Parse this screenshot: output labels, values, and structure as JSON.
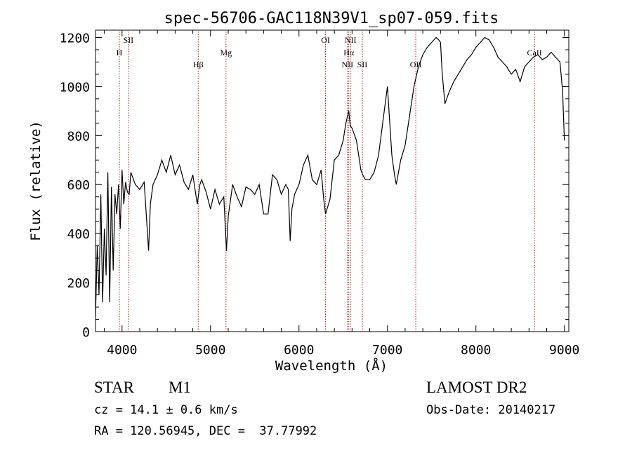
{
  "chart_data": {
    "type": "line",
    "title": "spec-56706-GAC118N39V1_sp07-059.fits",
    "xlabel": "Wavelength (Å)",
    "ylabel": "Flux (relative)",
    "xlim": [
      3700,
      9050
    ],
    "ylim": [
      0,
      1230
    ],
    "xticks": [
      4000,
      5000,
      6000,
      7000,
      8000,
      9000
    ],
    "yticks": [
      0,
      200,
      400,
      600,
      800,
      1000,
      1200
    ],
    "grid": false,
    "line_color": "#000000",
    "marker_color": "#b22222",
    "lines": [
      {
        "label": "H",
        "x": 3970,
        "row": 2
      },
      {
        "label": "SII",
        "x": 4072,
        "row": 1
      },
      {
        "label": "Hβ",
        "x": 4861,
        "row": 3
      },
      {
        "label": "Mg",
        "x": 5175,
        "row": 2
      },
      {
        "label": "OI",
        "x": 6300,
        "row": 1
      },
      {
        "label": "NII",
        "x": 6548,
        "row": 3
      },
      {
        "label": "Hα",
        "x": 6563,
        "row": 2
      },
      {
        "label": "NII",
        "x": 6583,
        "row": 1
      },
      {
        "label": "SII",
        "x": 6716,
        "row": 3
      },
      {
        "label": "OII",
        "x": 7320,
        "row": 3
      },
      {
        "label": "CaII",
        "x": 8662,
        "row": 2
      }
    ],
    "series": [
      {
        "x": [
          3700,
          3720,
          3740,
          3760,
          3780,
          3800,
          3820,
          3840,
          3860,
          3880,
          3900,
          3920,
          3940,
          3960,
          3980,
          4000,
          4020,
          4040,
          4060,
          4080,
          4100,
          4150,
          4200,
          4250,
          4300,
          4320,
          4350,
          4400,
          4450,
          4500,
          4550,
          4600,
          4650,
          4700,
          4750,
          4800,
          4850,
          4880,
          4900,
          4950,
          5000,
          5050,
          5100,
          5150,
          5180,
          5200,
          5250,
          5300,
          5350,
          5400,
          5450,
          5500,
          5550,
          5600,
          5650,
          5700,
          5750,
          5800,
          5850,
          5880,
          5900,
          5920,
          5950,
          6000,
          6050,
          6100,
          6150,
          6200,
          6250,
          6280,
          6300,
          6350,
          6400,
          6450,
          6500,
          6530,
          6550,
          6563,
          6580,
          6600,
          6650,
          6700,
          6720,
          6750,
          6800,
          6850,
          6900,
          6950,
          7000,
          7050,
          7080,
          7100,
          7150,
          7200,
          7250,
          7300,
          7350,
          7400,
          7450,
          7500,
          7550,
          7580,
          7600,
          7620,
          7650,
          7700,
          7750,
          7800,
          7850,
          7900,
          7950,
          8000,
          8050,
          8100,
          8150,
          8200,
          8250,
          8300,
          8350,
          8400,
          8450,
          8500,
          8550,
          8600,
          8650,
          8700,
          8750,
          8800,
          8850,
          8900,
          8950,
          8980,
          9000
        ],
        "y": [
          60,
          350,
          150,
          560,
          120,
          420,
          230,
          650,
          120,
          590,
          250,
          560,
          480,
          600,
          420,
          660,
          520,
          610,
          570,
          560,
          650,
          600,
          580,
          610,
          330,
          520,
          600,
          640,
          700,
          650,
          720,
          640,
          680,
          610,
          580,
          640,
          520,
          600,
          620,
          570,
          500,
          580,
          520,
          550,
          330,
          470,
          600,
          550,
          510,
          590,
          580,
          560,
          600,
          480,
          480,
          640,
          620,
          560,
          600,
          580,
          370,
          500,
          560,
          600,
          680,
          720,
          620,
          600,
          660,
          540,
          480,
          540,
          700,
          720,
          780,
          850,
          880,
          900,
          840,
          830,
          780,
          660,
          640,
          620,
          620,
          650,
          720,
          860,
          1000,
          720,
          640,
          600,
          700,
          760,
          880,
          1000,
          1080,
          1130,
          1160,
          1180,
          1200,
          1190,
          1180,
          1050,
          930,
          980,
          1020,
          1050,
          1080,
          1110,
          1130,
          1160,
          1180,
          1200,
          1190,
          1160,
          1120,
          1100,
          1080,
          1050,
          1070,
          1020,
          1080,
          1100,
          1120,
          1130,
          1110,
          1120,
          1140,
          1120,
          1100,
          980,
          780
        ]
      }
    ]
  },
  "footer": {
    "object_class": "STAR",
    "subclass": "M1",
    "survey": "LAMOST DR2",
    "redshift": "cz = 14.1 ± 0.6 km/s",
    "obs_date": "Obs-Date: 20140217",
    "coords": "RA = 120.56945, DEC =  37.77992"
  }
}
